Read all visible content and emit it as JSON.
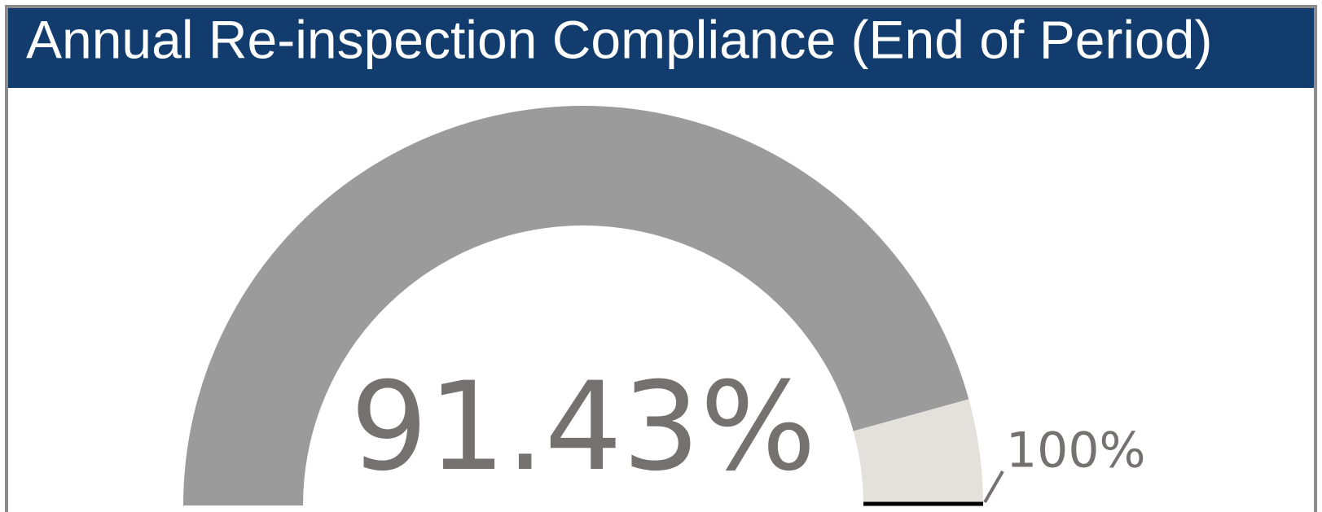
{
  "chart_data": {
    "type": "gauge",
    "title": "Annual Re-inspection Compliance (End of Period)",
    "value": 91.43,
    "value_label": "91.43%",
    "ylim": [
      0,
      100
    ],
    "target": 100,
    "target_label": "100%",
    "color": "#9b9b9b",
    "track_color": "#e4e0db",
    "target_color": "#000000"
  }
}
